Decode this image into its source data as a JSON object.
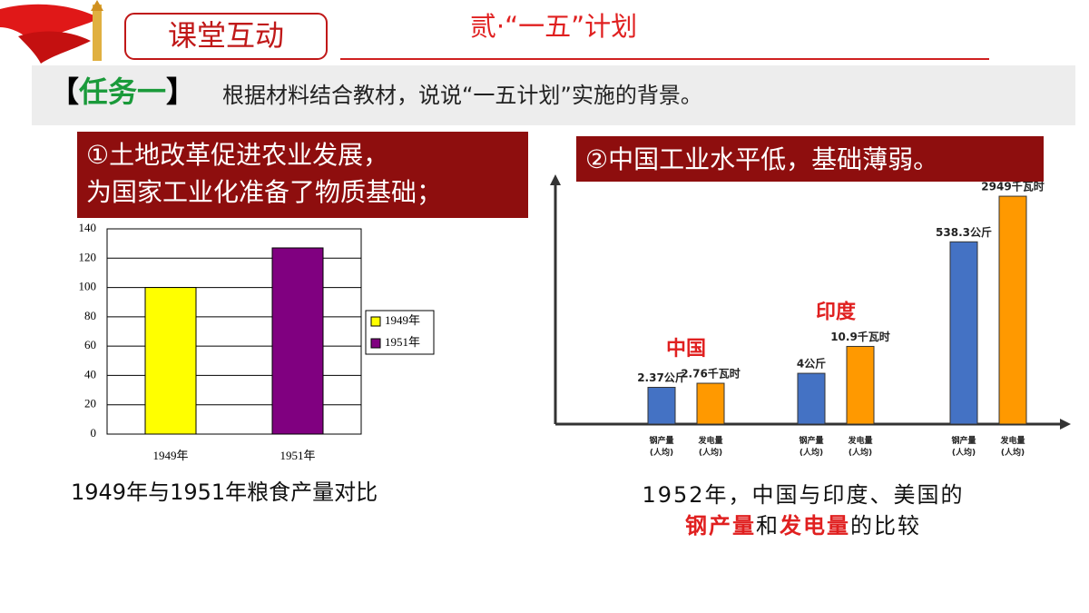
{
  "header": {
    "badge": "课堂互动",
    "title": "贰·“一五”计划"
  },
  "task": {
    "open": "【",
    "label": "任务一",
    "close": "】",
    "text": "根据材料结合教材，说说“一五计划”实施的背景。"
  },
  "points": [
    {
      "lines": [
        "①土地改革促进农业发展，",
        "为国家工业化准备了物质基础；"
      ]
    },
    {
      "lines": [
        "②中国工业水平低，基础薄弱。"
      ]
    }
  ],
  "chart_data": [
    {
      "type": "bar",
      "categories": [
        "1949年",
        "1951年"
      ],
      "series": [
        {
          "name": "1949年",
          "color": "#ffff00",
          "values": [
            100,
            null
          ]
        },
        {
          "name": "1951年",
          "color": "#800080",
          "values": [
            null,
            127
          ]
        }
      ],
      "ylim": [
        0,
        140
      ],
      "yticks": [
        0,
        20,
        40,
        60,
        80,
        100,
        120,
        140
      ],
      "grid": true,
      "legend": "right",
      "caption": "1949年与1951年粮食产量对比"
    },
    {
      "type": "bar",
      "categories": [
        "中国",
        "印度",
        null
      ],
      "category_color": "#e02020",
      "series": [
        {
          "name": "钢产量(人均)",
          "color": "#4472c4",
          "values": [
            2.37,
            4,
            538.3
          ],
          "value_labels": [
            "2.37公斤",
            "4公斤",
            "538.3公斤"
          ]
        },
        {
          "name": "发电量(人均)",
          "color": "#ff9900",
          "values": [
            2.76,
            10.9,
            2949
          ],
          "value_labels": [
            "2.76千瓦时",
            "10.9千瓦时",
            "2949千瓦时"
          ]
        }
      ],
      "caption": "1952年，中国与印度、美国的",
      "caption_parts": [
        {
          "text": "钢产量",
          "color": "#e02020"
        },
        {
          "text": "和"
        },
        {
          "text": "发电量",
          "color": "#e02020"
        },
        {
          "text": "的比较"
        }
      ]
    }
  ]
}
